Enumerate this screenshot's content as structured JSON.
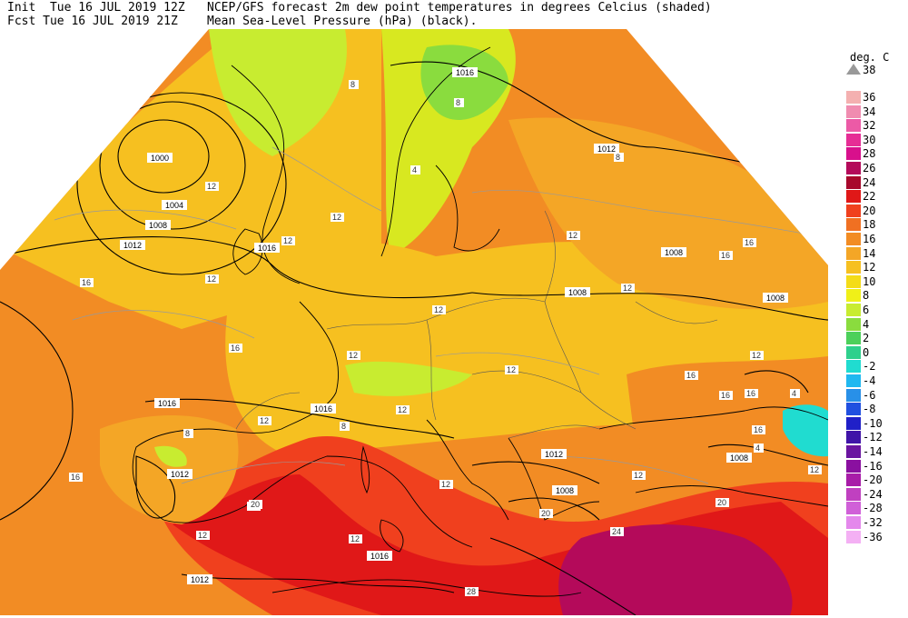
{
  "header": {
    "init_line": "Init  Tue 16 JUL 2019 12Z",
    "fcst_line": "Fcst Tue 16 JUL 2019 21Z",
    "title_line": "NCEP/GFS forecast 2m dew point temperatures in degrees Celcius (shaded)",
    "subtitle_line": "Mean Sea-Level Pressure (hPa) (black)."
  },
  "legend": {
    "title": "deg. C",
    "top_label": "38",
    "items": [
      {
        "label": "36",
        "color": "#f4b0b0"
      },
      {
        "label": "34",
        "color": "#f08cb0"
      },
      {
        "label": "32",
        "color": "#ec5aa6"
      },
      {
        "label": "30",
        "color": "#e62d95"
      },
      {
        "label": "28",
        "color": "#d8108c"
      },
      {
        "label": "26",
        "color": "#b40a5a"
      },
      {
        "label": "24",
        "color": "#a8082c"
      },
      {
        "label": "22",
        "color": "#e01818"
      },
      {
        "label": "20",
        "color": "#f0401e"
      },
      {
        "label": "18",
        "color": "#f07022"
      },
      {
        "label": "16",
        "color": "#f28c24"
      },
      {
        "label": "14",
        "color": "#f4a626"
      },
      {
        "label": "12",
        "color": "#f6c020"
      },
      {
        "label": "10",
        "color": "#f4dc18"
      },
      {
        "label": "8",
        "color": "#f0f018"
      },
      {
        "label": "6",
        "color": "#c8ec30"
      },
      {
        "label": "4",
        "color": "#8adc3e"
      },
      {
        "label": "2",
        "color": "#4cd05a"
      },
      {
        "label": "0",
        "color": "#2ed08c"
      },
      {
        "label": "-2",
        "color": "#20dcd0"
      },
      {
        "label": "-4",
        "color": "#20b8f0"
      },
      {
        "label": "-6",
        "color": "#2890e8"
      },
      {
        "label": "-8",
        "color": "#2050e0"
      },
      {
        "label": "-10",
        "color": "#2020c8"
      },
      {
        "label": "-12",
        "color": "#4014a8"
      },
      {
        "label": "-14",
        "color": "#6a14a0"
      },
      {
        "label": "-16",
        "color": "#8a10a0"
      },
      {
        "label": "-20",
        "color": "#a81ca8"
      },
      {
        "label": "-24",
        "color": "#c040c0"
      },
      {
        "label": "-28",
        "color": "#d060d8"
      },
      {
        "label": "-32",
        "color": "#e488ec"
      },
      {
        "label": "-36",
        "color": "#f4b0f4"
      }
    ]
  },
  "map": {
    "isobar_labels": [
      "1000",
      "1004",
      "1008",
      "1012",
      "1016",
      "1016",
      "1016",
      "1016",
      "1012",
      "1012",
      "1012",
      "1008",
      "1008",
      "1008",
      "1008",
      "1008",
      "1012",
      "1008",
      "1016",
      "1012"
    ],
    "dewpoint_labels": [
      "8",
      "8",
      "12",
      "12",
      "12",
      "12",
      "12",
      "12",
      "16",
      "16",
      "16",
      "16",
      "16",
      "16",
      "12",
      "12",
      "12",
      "12",
      "12",
      "20",
      "20",
      "20",
      "24",
      "24",
      "28",
      "4",
      "4",
      "8",
      "8",
      "12",
      "12",
      "12",
      "8",
      "12",
      "16",
      "16",
      "16",
      "8",
      "4",
      "12",
      "12",
      "20"
    ],
    "colors": {
      "ocean": "#f4a626",
      "land": "#f6c020",
      "hot": "#e01818",
      "veryhot": "#b40a5a",
      "green": "#8adc3e",
      "cyan": "#20dcd0",
      "coast": "#000000",
      "border": "#555555"
    }
  }
}
